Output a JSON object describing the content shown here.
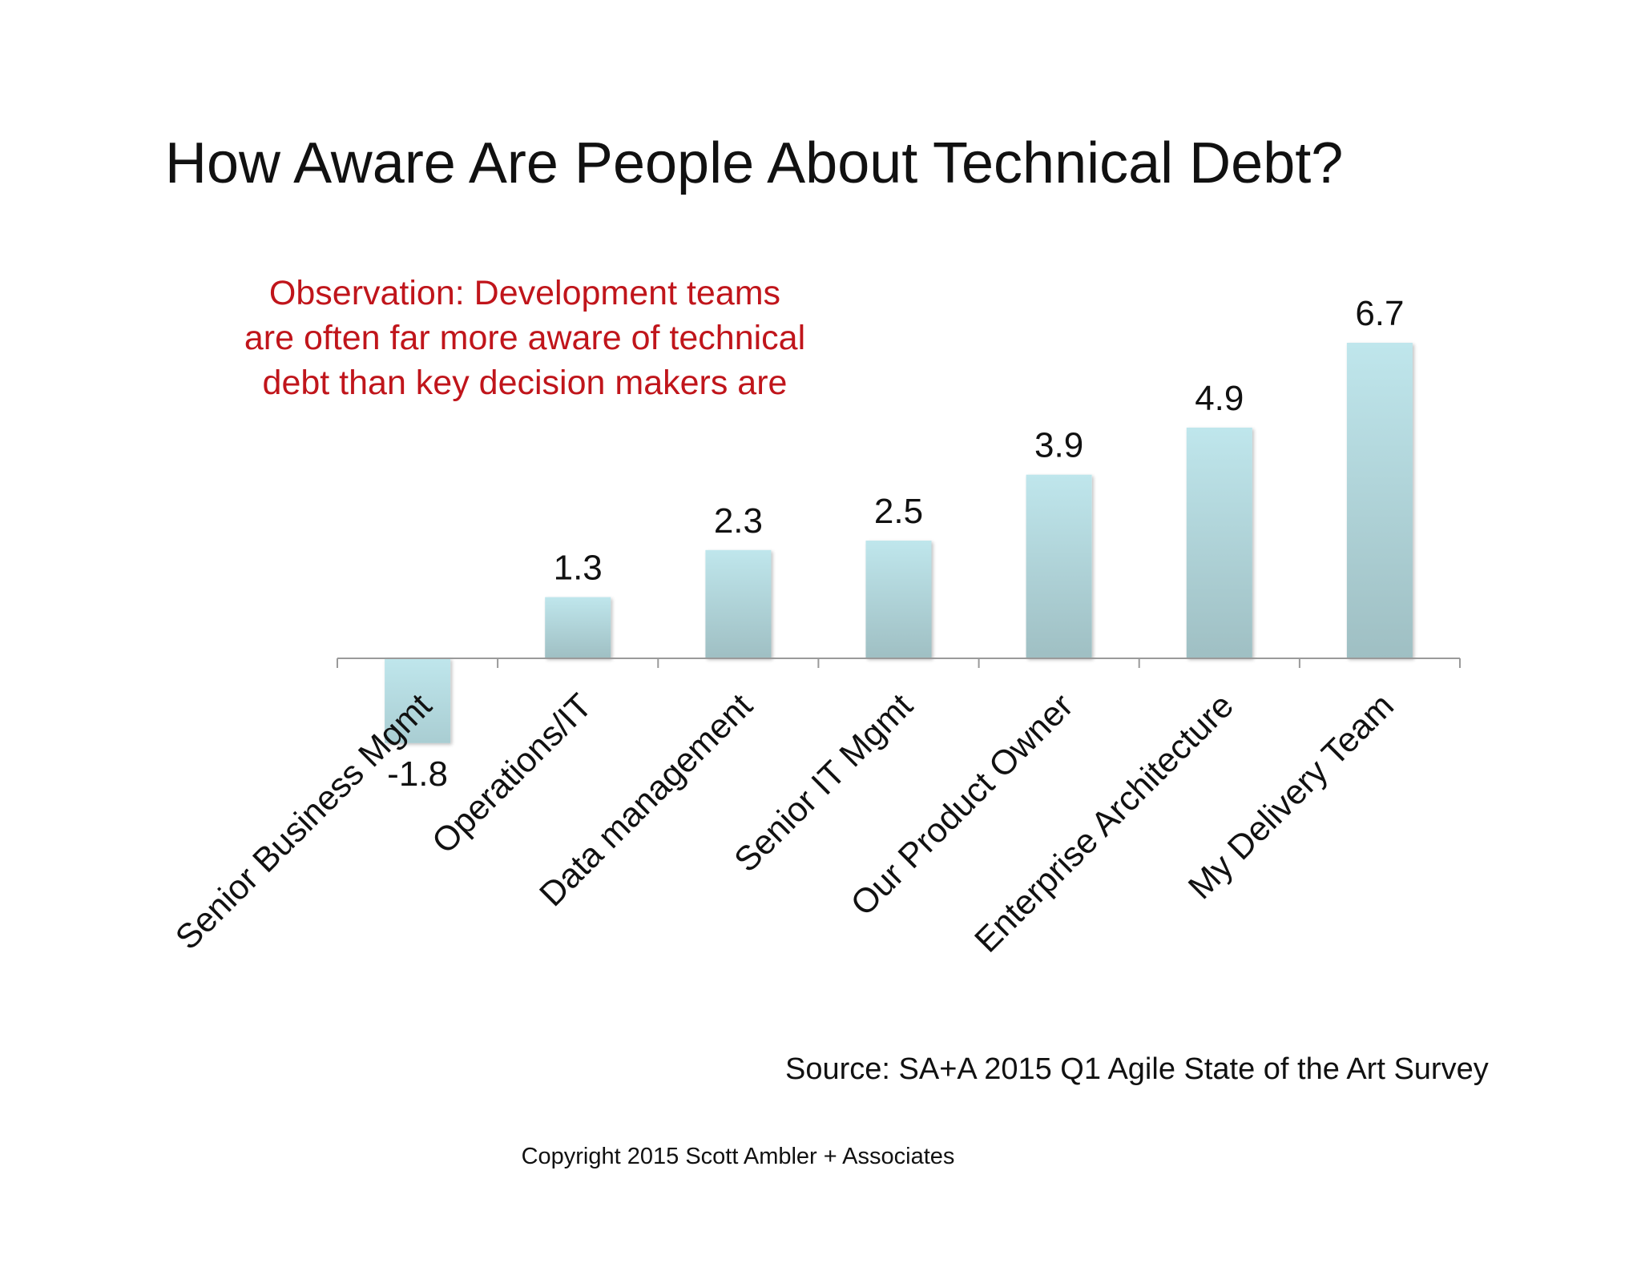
{
  "title": "How Aware Are People About Technical Debt?",
  "observation": {
    "line1": "Observation: Development teams",
    "line2": "are often far more aware of technical",
    "line3": "debt than key decision makers are"
  },
  "source": "Source: SA+A 2015 Q1 Agile State of the Art Survey",
  "copyright": "Copyright 2015 Scott Ambler + Associates",
  "colors": {
    "bar_top": "#bfe6ec",
    "bar_bottom": "#9fbfc3",
    "observation": "#c0151b",
    "axis": "#9a9a9a"
  },
  "chart_data": {
    "type": "bar",
    "categories": [
      "Senior Business Mgmt",
      "Operations/IT",
      "Data management",
      "Senior IT Mgmt",
      "Our Product Owner",
      "Enterprise Architecture",
      "My Delivery Team"
    ],
    "values": [
      -1.8,
      1.3,
      2.3,
      2.5,
      3.9,
      4.9,
      6.7
    ],
    "value_labels": [
      "-1.8",
      "1.3",
      "2.3",
      "2.5",
      "3.9",
      "4.9",
      "6.7"
    ],
    "title": "How Aware Are People About Technical Debt?",
    "xlabel": "",
    "ylabel": "",
    "ylim": [
      -2,
      7
    ],
    "grid": false,
    "legend": "none"
  }
}
